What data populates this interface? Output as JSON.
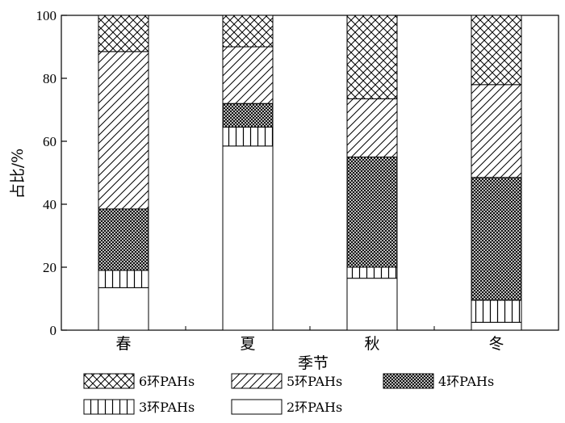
{
  "chart_data": {
    "type": "bar",
    "stacked": true,
    "categories": [
      "春",
      "夏",
      "秋",
      "冬"
    ],
    "xlabel": "季节",
    "ylabel": "占比/%",
    "ylim": [
      0,
      100
    ],
    "yticks": [
      0,
      20,
      40,
      60,
      80,
      100
    ],
    "grid": false,
    "legend_position": "bottom",
    "series": [
      {
        "name": "2环PAHs",
        "pattern": "white",
        "values": [
          13.5,
          58.5,
          16.5,
          2.5
        ]
      },
      {
        "name": "3环PAHs",
        "pattern": "vertical",
        "values": [
          5.5,
          6.0,
          3.5,
          7.0
        ]
      },
      {
        "name": "4环PAHs",
        "pattern": "dense-cross",
        "values": [
          19.5,
          7.5,
          35.0,
          39.0
        ]
      },
      {
        "name": "5环PAHs",
        "pattern": "diagonal",
        "values": [
          50.0,
          18.0,
          18.5,
          29.5
        ]
      },
      {
        "name": "6环PAHs",
        "pattern": "crosshatch",
        "values": [
          11.5,
          10.0,
          26.5,
          22.0
        ]
      }
    ],
    "legend_order": [
      4,
      3,
      2,
      1,
      0
    ]
  }
}
